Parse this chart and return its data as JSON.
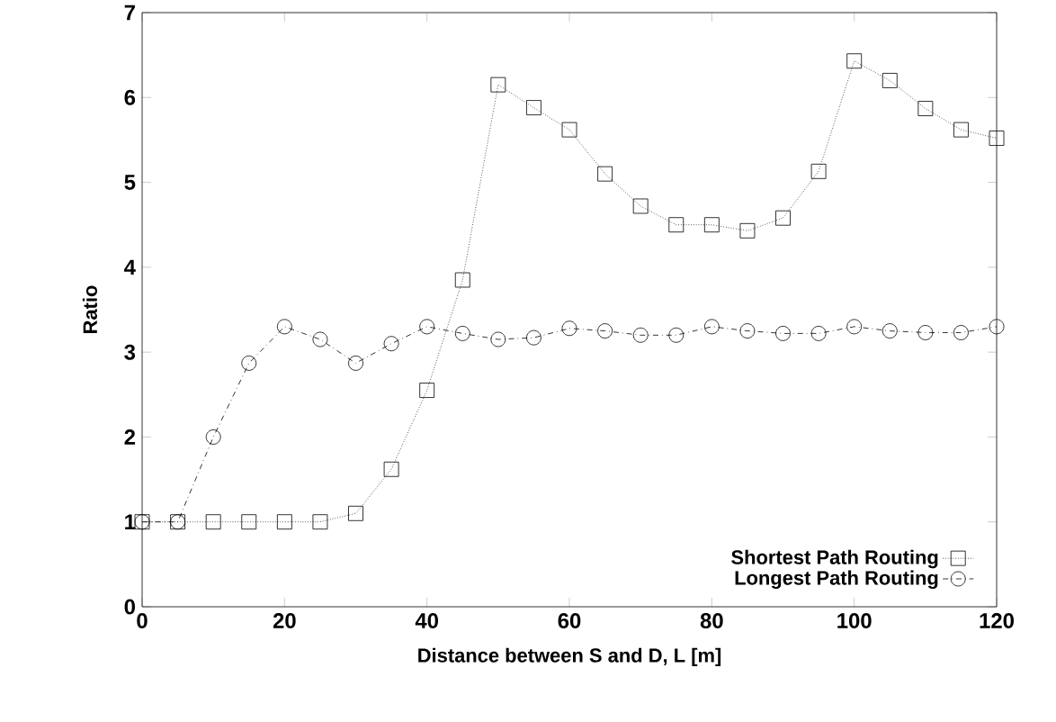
{
  "chart_data": {
    "type": "line",
    "xlabel": "Distance between S and D, L [m]",
    "ylabel": "Ratio",
    "x": [
      0,
      5,
      10,
      15,
      20,
      25,
      30,
      35,
      40,
      45,
      50,
      55,
      60,
      65,
      70,
      75,
      80,
      85,
      90,
      95,
      100,
      105,
      110,
      115,
      120
    ],
    "series": [
      {
        "name": "Shortest Path Routing",
        "color": "#000000",
        "marker": "square",
        "line_style": "dotted",
        "values": [
          1,
          1,
          1,
          1,
          1,
          1,
          1.1,
          1.62,
          2.55,
          3.85,
          6.15,
          5.88,
          5.62,
          5.1,
          4.72,
          4.5,
          4.5,
          4.43,
          4.58,
          5.13,
          6.43,
          6.2,
          5.87,
          5.62,
          5.52
        ]
      },
      {
        "name": "Longest Path Routing",
        "color": "#000000",
        "marker": "circle",
        "line_style": "dashdot",
        "values": [
          1,
          1,
          2,
          2.87,
          3.3,
          3.15,
          2.87,
          3.1,
          3.3,
          3.22,
          3.15,
          3.17,
          3.28,
          3.25,
          3.2,
          3.2,
          3.3,
          3.25,
          3.22,
          3.22,
          3.3,
          3.25,
          3.23,
          3.23,
          3.3
        ]
      }
    ],
    "xlim": [
      0,
      120
    ],
    "ylim": [
      0,
      7
    ],
    "xticks": [
      0,
      20,
      40,
      60,
      80,
      100,
      120
    ],
    "yticks": [
      0,
      1,
      2,
      3,
      4,
      5,
      6,
      7
    ],
    "legend": "bottom right",
    "grid": false
  }
}
